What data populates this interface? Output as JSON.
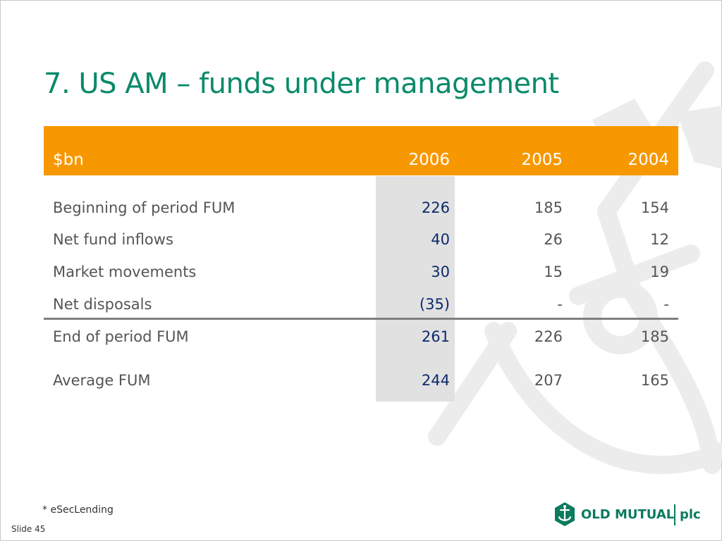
{
  "slide": {
    "title": "7. US AM – funds under management",
    "footnote": "* eSecLending",
    "slide_number": "Slide 45"
  },
  "table": {
    "header": {
      "unit_label": "$bn",
      "years": [
        "2006",
        "2005",
        "2004"
      ]
    },
    "rows": [
      {
        "label": "Beginning of period FUM",
        "values": [
          "226",
          "185",
          "154"
        ]
      },
      {
        "label": "Net fund inflows",
        "values": [
          "40",
          "26",
          "12"
        ]
      },
      {
        "label": "Market movements",
        "values": [
          "30",
          "15",
          "19"
        ]
      },
      {
        "label": "Net disposals",
        "values": [
          "(35)",
          "-",
          "-"
        ]
      },
      {
        "label": "End of period FUM",
        "values": [
          "261",
          "226",
          "185"
        ]
      },
      {
        "label": "Average FUM",
        "values": [
          "244",
          "207",
          "165"
        ]
      }
    ],
    "colors": {
      "header_band": "#f79800",
      "highlight_column": "#e1e1e1",
      "title": "#0b8a6a",
      "current_year_values": "#0d2a6b"
    }
  },
  "logo": {
    "name": "OLD MUTUAL",
    "suffix": "plc",
    "icon": "old-mutual-anchor-emblem-icon"
  }
}
